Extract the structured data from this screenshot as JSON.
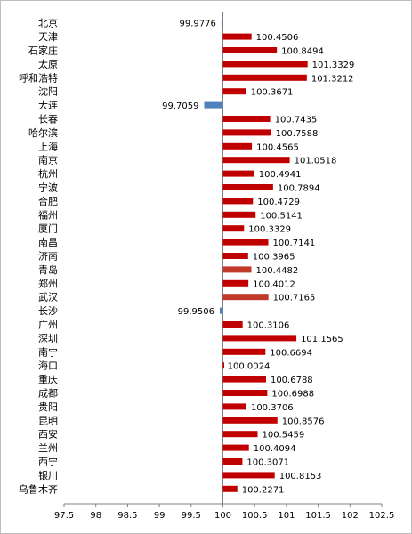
{
  "chart_data": {
    "type": "bar",
    "orientation": "horizontal",
    "categories": [
      "北京",
      "天津",
      "石家庄",
      "太原",
      "呼和浩特",
      "沈阳",
      "大连",
      "长春",
      "哈尔滨",
      "上海",
      "南京",
      "杭州",
      "宁波",
      "合肥",
      "福州",
      "厦门",
      "南昌",
      "济南",
      "青岛",
      "郑州",
      "武汉",
      "长沙",
      "广州",
      "深圳",
      "南宁",
      "海口",
      "重庆",
      "成都",
      "贵阳",
      "昆明",
      "西安",
      "兰州",
      "西宁",
      "银川",
      "乌鲁木齐"
    ],
    "values": [
      99.9776,
      100.4506,
      100.8494,
      101.3329,
      101.3212,
      100.3671,
      99.7059,
      100.7435,
      100.7588,
      100.4565,
      101.0518,
      100.4941,
      100.7894,
      100.4729,
      100.5141,
      100.3329,
      100.7141,
      100.3965,
      100.4482,
      100.4012,
      100.7165,
      99.9506,
      100.3106,
      101.1565,
      100.6694,
      100.0024,
      100.6788,
      100.6988,
      100.3706,
      100.8576,
      100.5459,
      100.4094,
      100.3071,
      100.8153,
      100.2271
    ],
    "value_labels": [
      "99.9776",
      "100.4506",
      "100.8494",
      "101.3329",
      "101.3212",
      "100.3671",
      "99.7059",
      "100.7435",
      "100.7588",
      "100.4565",
      "101.0518",
      "100.4941",
      "100.7894",
      "100.4729",
      "100.5141",
      "100.3329",
      "100.7141",
      "100.3965",
      "100.4482",
      "100.4012",
      "100.7165",
      "99.9506",
      "100.3106",
      "101.1565",
      "100.6694",
      "100.0024",
      "100.6788",
      "100.6988",
      "100.3706",
      "100.8576",
      "100.5459",
      "100.4094",
      "100.3071",
      "100.8153",
      "100.2271"
    ],
    "baseline": 100,
    "xlim": [
      97.5,
      102.5
    ],
    "ticks": [
      "97.5",
      "98",
      "98.5",
      "99",
      "99.5",
      "100",
      "100.5",
      "101",
      "101.5",
      "102",
      "102.5"
    ],
    "grid": false,
    "legend": "none",
    "colors": {
      "above_baseline": "#c00000",
      "above_baseline_alt": "#c0392b",
      "below_baseline": "#4f81bd"
    }
  }
}
